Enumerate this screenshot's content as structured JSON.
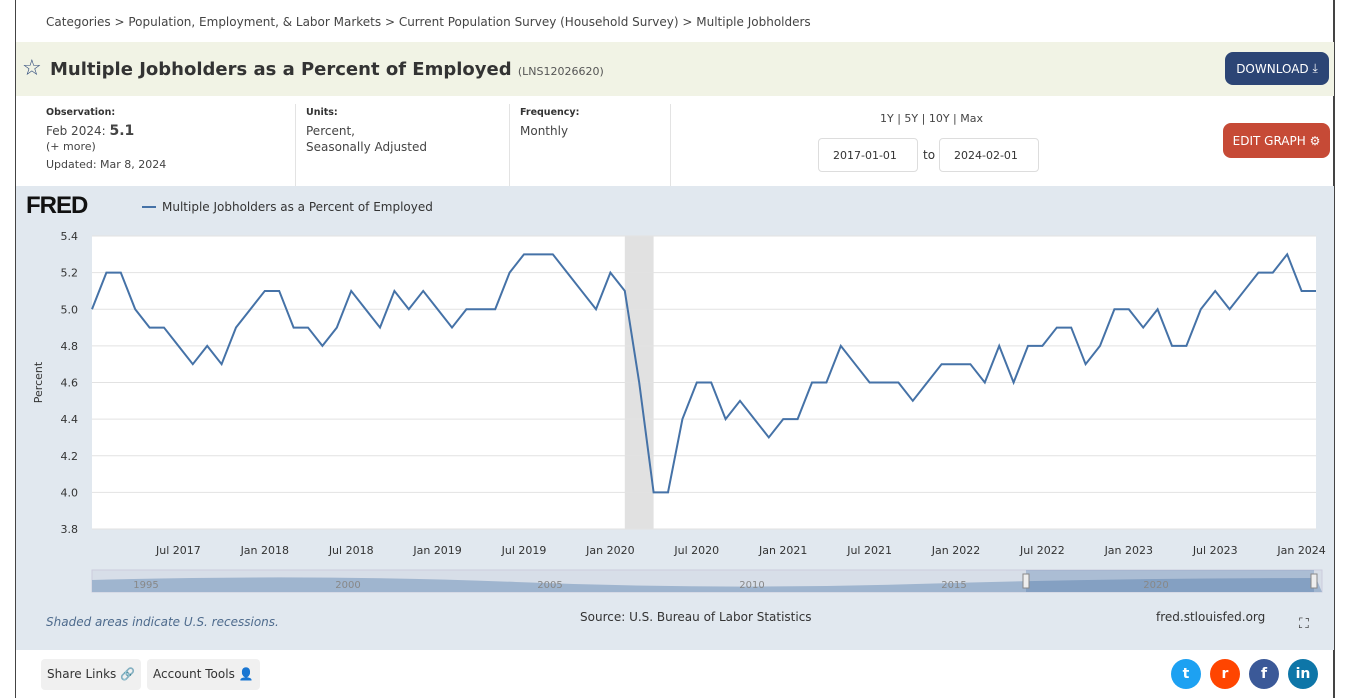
{
  "breadcrumb": "Categories > Population, Employment, & Labor Markets > Current Population Survey (Household Survey) > Multiple Jobholders",
  "title": "Multiple Jobholders as a Percent of Employed",
  "series_id": "(LNS12026620)",
  "download_label": "DOWNLOAD",
  "edit_label": "EDIT GRAPH",
  "observation": {
    "label": "Observation:",
    "date": "Feb 2024:",
    "value": "5.1",
    "more": "(+ more)",
    "updated": "Updated: Mar 8, 2024"
  },
  "units": {
    "label": "Units:",
    "line1": "Percent,",
    "line2": "Seasonally Adjusted"
  },
  "frequency": {
    "label": "Frequency:",
    "value": "Monthly"
  },
  "ranges": "1Y | 5Y | 10Y | Max",
  "date_from": "2017-01-01",
  "date_to": "2024-02-01",
  "to_label": "to",
  "fred_logo": "FRED",
  "note": "Shaded areas indicate U.S. recessions.",
  "source": "Source: U.S. Bureau of Labor Statistics",
  "site": "fred.stlouisfed.org",
  "share_links": "Share Links",
  "account_tools": "Account Tools",
  "navigator_labels": [
    "1995",
    "2000",
    "2005",
    "2010",
    "2015",
    "2020"
  ],
  "colors": {
    "line": "#4572a7",
    "recession": "#e1e1e1",
    "download": "#2c4575",
    "edit": "#c64a36"
  },
  "chart_data": {
    "type": "line",
    "ylabel": "Percent",
    "ylim": [
      3.8,
      5.4
    ],
    "yticks": [
      "3.8",
      "4.0",
      "4.2",
      "4.4",
      "4.6",
      "4.8",
      "5.0",
      "5.2",
      "5.4"
    ],
    "xticks": [
      "Jul 2017",
      "Jan 2018",
      "Jul 2018",
      "Jan 2019",
      "Jul 2019",
      "Jan 2020",
      "Jul 2020",
      "Jan 2021",
      "Jul 2021",
      "Jan 2022",
      "Jul 2022",
      "Jan 2023",
      "Jul 2023",
      "Jan 2024"
    ],
    "x_start": "2017-01",
    "x_end": "2024-02",
    "recession": [
      "2020-02",
      "2020-04"
    ],
    "grid": true,
    "legend": "top-left",
    "series": [
      {
        "name": "Multiple Jobholders as a Percent of Employed",
        "values": [
          5.0,
          5.2,
          5.2,
          5.0,
          4.9,
          4.9,
          4.8,
          4.7,
          4.8,
          4.7,
          4.9,
          5.0,
          5.1,
          5.1,
          4.9,
          4.9,
          4.8,
          4.9,
          5.1,
          5.0,
          4.9,
          5.1,
          5.0,
          5.1,
          5.0,
          4.9,
          5.0,
          5.0,
          5.0,
          5.2,
          5.3,
          5.3,
          5.3,
          5.2,
          5.1,
          5.0,
          5.2,
          5.1,
          4.6,
          4.0,
          4.0,
          4.4,
          4.6,
          4.6,
          4.4,
          4.5,
          4.4,
          4.3,
          4.4,
          4.4,
          4.6,
          4.6,
          4.8,
          4.7,
          4.6,
          4.6,
          4.6,
          4.5,
          4.6,
          4.7,
          4.7,
          4.7,
          4.6,
          4.8,
          4.6,
          4.8,
          4.8,
          4.9,
          4.9,
          4.7,
          4.8,
          5.0,
          5.0,
          4.9,
          5.0,
          4.8,
          4.8,
          5.0,
          5.1,
          5.0,
          5.1,
          5.2,
          5.2,
          5.3,
          5.1,
          5.1
        ]
      }
    ]
  }
}
